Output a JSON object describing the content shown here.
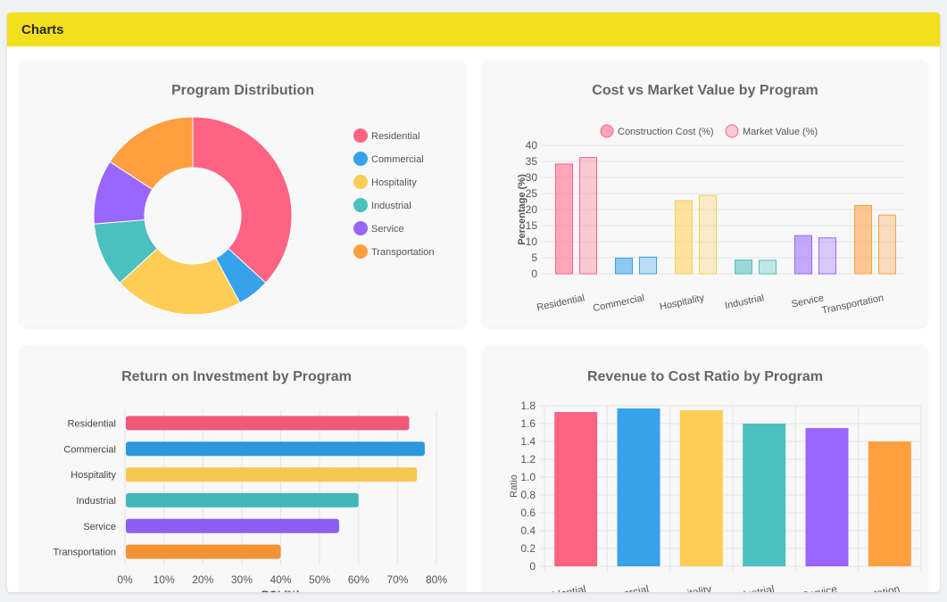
{
  "panel": {
    "title": "Charts"
  },
  "chart_data": [
    {
      "id": "distribution",
      "type": "pie",
      "title": "Program Distribution",
      "categories": [
        "Residential",
        "Commercial",
        "Hospitality",
        "Industrial",
        "Service",
        "Transportation"
      ],
      "values": [
        35,
        5,
        20,
        10,
        10,
        15
      ],
      "colors": [
        "#ff6384",
        "#36a2eb",
        "#ffcd56",
        "#4bc0c0",
        "#9966ff",
        "#ff9f40"
      ],
      "legend": "right"
    },
    {
      "id": "cost-market",
      "type": "bar",
      "title": "Cost vs Market Value by Program",
      "categories": [
        "Residential",
        "Commercial",
        "Hospitality",
        "Industrial",
        "Service",
        "Transportation"
      ],
      "series": [
        {
          "name": "Construction Cost (%)",
          "values": [
            34.2,
            4.9,
            22.8,
            4.3,
            11.9,
            21.3
          ]
        },
        {
          "name": "Market Value (%)",
          "values": [
            36.2,
            5.2,
            24.4,
            4.2,
            11.2,
            18.3
          ]
        }
      ],
      "colors": [
        "#ff6384",
        "#36a2eb",
        "#ffcd56",
        "#4bc0c0",
        "#9966ff",
        "#ff9f40"
      ],
      "ylabel": "Percentage (%)",
      "ylim": [
        0,
        40
      ],
      "yticks": [
        "0",
        "5",
        "10",
        "15",
        "20",
        "25",
        "30",
        "35",
        "40"
      ],
      "legend": "top"
    },
    {
      "id": "roi",
      "type": "bar",
      "orientation": "horizontal",
      "title": "Return on Investment by Program",
      "categories": [
        "Residential",
        "Commercial",
        "Hospitality",
        "Industrial",
        "Service",
        "Transportation"
      ],
      "values": [
        73,
        77,
        75,
        60,
        55,
        40
      ],
      "colors": [
        "#f0587a",
        "#2c97df",
        "#f4c94e",
        "#42b7b7",
        "#8d5ef5",
        "#f39334"
      ],
      "xlabel": "ROI (%)",
      "xlim": [
        0,
        80
      ],
      "xticks": [
        "0%",
        "10%",
        "20%",
        "30%",
        "40%",
        "50%",
        "60%",
        "70%",
        "80%"
      ]
    },
    {
      "id": "revenue-cost",
      "type": "bar",
      "title": "Revenue to Cost Ratio by Program",
      "categories": [
        "Residential",
        "Commercial",
        "Hospitality",
        "Industrial",
        "Service",
        "Transportation"
      ],
      "values": [
        1.73,
        1.77,
        1.75,
        1.6,
        1.55,
        1.4
      ],
      "colors": [
        "#ff6384",
        "#36a2eb",
        "#ffcd56",
        "#4bc0c0",
        "#9966ff",
        "#ff9f40"
      ],
      "ylabel": "Ratio",
      "ylim": [
        0,
        1.8
      ],
      "yticks": [
        "0",
        "0.2",
        "0.4",
        "0.6",
        "0.8",
        "1.0",
        "1.2",
        "1.4",
        "1.6",
        "1.8"
      ]
    }
  ]
}
